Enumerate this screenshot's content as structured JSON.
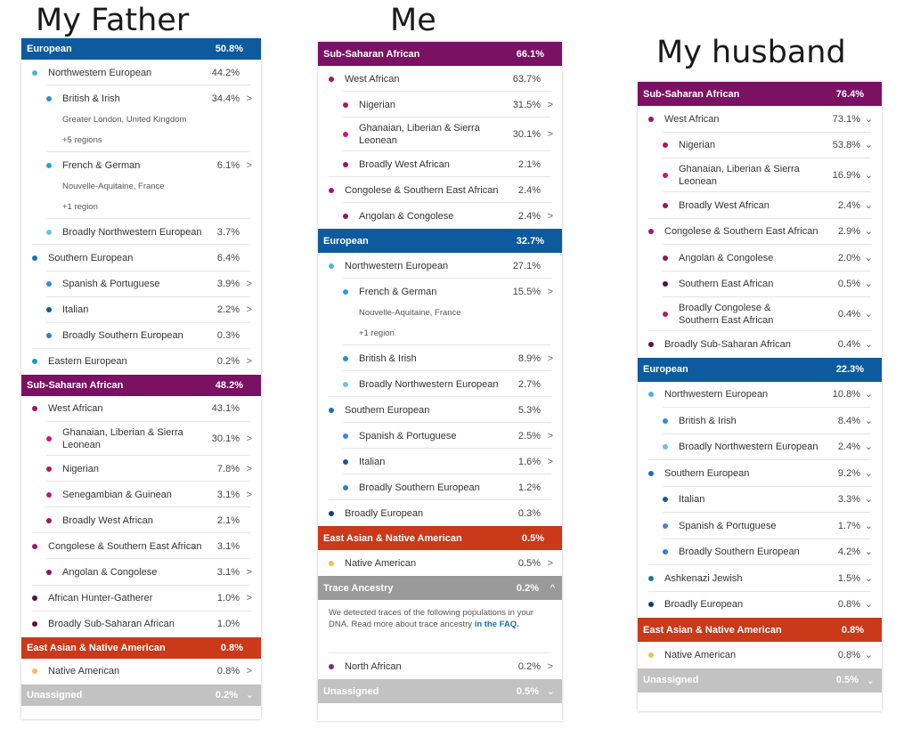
{
  "captions": {
    "father": "My Father",
    "me": "Me",
    "husband": "My husband"
  },
  "colors": {
    "european": "#0d5b9c",
    "subsaharan": "#7b1163",
    "eastasian": "#c9391a",
    "trace": "#9a9a9a",
    "unassigned": "#c2c2c2"
  },
  "father": {
    "rows": [
      {
        "label": "European",
        "pct": "50.8%",
        "type": "header",
        "color": "#0d5b9c"
      },
      {
        "label": "Northwestern European",
        "pct": "44.2%",
        "dot": "#4fb3d9"
      },
      {
        "label": "British & Irish",
        "pct": "34.4%",
        "dot": "#2f8fcf",
        "chevron": ">",
        "sub": [
          "Greater London, United Kingdom",
          "+5 regions"
        ]
      },
      {
        "label": "French & German",
        "pct": "6.1%",
        "dot": "#2aa0d8",
        "chevron": ">",
        "sub": [
          "Nouvelle-Aquitaine, France",
          "+1 region"
        ]
      },
      {
        "label": "Broadly Northwestern European",
        "pct": "3.7%",
        "dot": "#6cc3e8"
      },
      {
        "label": "Southern European",
        "pct": "6.4%",
        "dot": "#1b6fb3"
      },
      {
        "label": "Spanish & Portuguese",
        "pct": "3.9%",
        "dot": "#3b8ad6",
        "chevron": ">"
      },
      {
        "label": "Italian",
        "pct": "2.2%",
        "dot": "#175a9c",
        "chevron": ">"
      },
      {
        "label": "Broadly Southern European",
        "pct": "0.3%",
        "dot": "#2f7fd0"
      },
      {
        "label": "Eastern European",
        "pct": "0.2%",
        "dot": "#1a9bc6",
        "chevron": ">"
      },
      {
        "label": "Sub-Saharan African",
        "pct": "48.2%",
        "type": "header",
        "color": "#7b1163"
      },
      {
        "label": "West African",
        "pct": "43.1%",
        "dot": "#a11463"
      },
      {
        "label": "Ghanaian, Liberian & Sierra Leonean",
        "pct": "30.1%",
        "dot": "#d1166f",
        "chevron": ">",
        "two": true
      },
      {
        "label": "Nigerian",
        "pct": "7.8%",
        "dot": "#b51561",
        "chevron": ">"
      },
      {
        "label": "Senegambian & Guinean",
        "pct": "3.1%",
        "dot": "#c0197a",
        "chevron": ">"
      },
      {
        "label": "Broadly West African",
        "pct": "2.1%",
        "dot": "#9e1660"
      },
      {
        "label": "Congolese & Southern East African",
        "pct": "3.1%",
        "dot": "#a0186e"
      },
      {
        "label": "Angolan & Congolese",
        "pct": "3.1%",
        "dot": "#8e1565",
        "chevron": ">"
      },
      {
        "label": "African Hunter-Gatherer",
        "pct": "1.0%",
        "dot": "#5a0e45",
        "chevron": ">"
      },
      {
        "label": "Broadly Sub-Saharan African",
        "pct": "1.0%",
        "dot": "#5e1046"
      },
      {
        "label": "East Asian & Native American",
        "pct": "0.8%",
        "type": "header",
        "color": "#c9391a"
      },
      {
        "label": "Native American",
        "pct": "0.8%",
        "dot": "#f2c14a",
        "chevron": ">"
      },
      {
        "label": "Unassigned",
        "pct": "0.2%",
        "type": "header",
        "color": "#c2c2c2",
        "chevron": "⌄"
      }
    ]
  },
  "me": {
    "rows": [
      {
        "label": "Sub-Saharan African",
        "pct": "66.1%",
        "type": "header",
        "color": "#7b1163"
      },
      {
        "label": "West African",
        "pct": "63.7%",
        "dot": "#a11463"
      },
      {
        "label": "Nigerian",
        "pct": "31.5%",
        "dot": "#b51561",
        "chevron": ">"
      },
      {
        "label": "Ghanaian, Liberian & Sierra Leonean",
        "pct": "30.1%",
        "dot": "#d1166f",
        "chevron": ">",
        "two": true
      },
      {
        "label": "Broadly West African",
        "pct": "2.1%",
        "dot": "#9e1660"
      },
      {
        "label": "Congolese & Southern East African",
        "pct": "2.4%",
        "dot": "#a0186e"
      },
      {
        "label": "Angolan & Congolese",
        "pct": "2.4%",
        "dot": "#8e1565",
        "chevron": ">"
      },
      {
        "label": "European",
        "pct": "32.7%",
        "type": "header",
        "color": "#0d5b9c"
      },
      {
        "label": "Northwestern European",
        "pct": "27.1%",
        "dot": "#4fb3d9"
      },
      {
        "label": "French & German",
        "pct": "15.5%",
        "dot": "#2aa0d8",
        "chevron": ">",
        "sub": [
          "Nouvelle-Aquitaine, France",
          "+1 region"
        ]
      },
      {
        "label": "British & Irish",
        "pct": "8.9%",
        "dot": "#2f8fcf",
        "chevron": ">"
      },
      {
        "label": "Broadly Northwestern European",
        "pct": "2.7%",
        "dot": "#6cc3e8"
      },
      {
        "label": "Southern European",
        "pct": "5.3%",
        "dot": "#1b6fb3"
      },
      {
        "label": "Spanish & Portuguese",
        "pct": "2.5%",
        "dot": "#3b8ad6",
        "chevron": ">"
      },
      {
        "label": "Italian",
        "pct": "1.6%",
        "dot": "#175a9c",
        "chevron": ">"
      },
      {
        "label": "Broadly Southern European",
        "pct": "1.2%",
        "dot": "#2f7fd0"
      },
      {
        "label": "Broadly European",
        "pct": "0.3%",
        "dot": "#0e3f75"
      },
      {
        "label": "East Asian & Native American",
        "pct": "0.5%",
        "type": "header",
        "color": "#c9391a"
      },
      {
        "label": "Native American",
        "pct": "0.5%",
        "dot": "#f2c14a",
        "chevron": ">"
      },
      {
        "label": "Trace Ancestry",
        "pct": "0.2%",
        "type": "header",
        "color": "#9a9a9a",
        "chevron": "^"
      },
      {
        "type": "note",
        "text": "We detected traces of the following populations in your DNA. Read more about trace ancestry ",
        "link": "in the FAQ."
      },
      {
        "label": "North African",
        "pct": "0.2%",
        "dot": "#7a2a80",
        "chevron": ">"
      },
      {
        "label": "Unassigned",
        "pct": "0.5%",
        "type": "header",
        "color": "#c2c2c2",
        "chevron": "⌄"
      }
    ]
  },
  "husband": {
    "rows": [
      {
        "label": "Sub-Saharan African",
        "pct": "76.4%",
        "type": "header",
        "color": "#7b1163"
      },
      {
        "label": "West African",
        "pct": "73.1%",
        "dot": "#a11463",
        "chevron": "⌄"
      },
      {
        "label": "Nigerian",
        "pct": "53.8%",
        "dot": "#b51561",
        "chevron": "⌄"
      },
      {
        "label": "Ghanaian, Liberian & Sierra Leonean",
        "pct": "16.9%",
        "dot": "#d1166f",
        "chevron": "⌄",
        "two": true
      },
      {
        "label": "Broadly West African",
        "pct": "2.4%",
        "dot": "#9e1660",
        "chevron": "⌄"
      },
      {
        "label": "Congolese & Southern East African",
        "pct": "2.9%",
        "dot": "#a0186e",
        "chevron": "⌄"
      },
      {
        "label": "Angolan & Congolese",
        "pct": "2.0%",
        "dot": "#8e1565",
        "chevron": "⌄"
      },
      {
        "label": "Southern East African",
        "pct": "0.5%",
        "dot": "#5a0e45",
        "chevron": "⌄"
      },
      {
        "label": "Broadly Congolese & Southern East African",
        "pct": "0.4%",
        "dot": "#b01a7a",
        "chevron": "⌄",
        "two": true
      },
      {
        "label": "Broadly Sub-Saharan African",
        "pct": "0.4%",
        "dot": "#5e1046",
        "chevron": "⌄"
      },
      {
        "label": "European",
        "pct": "22.3%",
        "type": "header",
        "color": "#0d5b9c"
      },
      {
        "label": "Northwestern European",
        "pct": "10.8%",
        "dot": "#4fb3d9",
        "chevron": "⌄"
      },
      {
        "label": "British & Irish",
        "pct": "8.4%",
        "dot": "#2f8fcf",
        "chevron": "⌄"
      },
      {
        "label": "Broadly Northwestern European",
        "pct": "2.4%",
        "dot": "#6cc3e8",
        "chevron": "⌄"
      },
      {
        "label": "Southern European",
        "pct": "9.2%",
        "dot": "#1b6fb3",
        "chevron": "⌄"
      },
      {
        "label": "Italian",
        "pct": "3.3%",
        "dot": "#175a9c",
        "chevron": "⌄"
      },
      {
        "label": "Spanish & Portuguese",
        "pct": "1.7%",
        "dot": "#3b8ad6",
        "chevron": "⌄"
      },
      {
        "label": "Broadly Southern European",
        "pct": "4.2%",
        "dot": "#2f7fd0",
        "chevron": "⌄"
      },
      {
        "label": "Ashkenazi Jewish",
        "pct": "1.5%",
        "dot": "#14807e",
        "chevron": "⌄"
      },
      {
        "label": "Broadly European",
        "pct": "0.8%",
        "dot": "#0e3f75",
        "chevron": "⌄"
      },
      {
        "label": "East Asian & Native American",
        "pct": "0.8%",
        "type": "header",
        "color": "#c9391a"
      },
      {
        "label": "Native American",
        "pct": "0.8%",
        "dot": "#f2c14a",
        "chevron": "⌄"
      },
      {
        "label": "Unassigned",
        "pct": "0.5%",
        "type": "header",
        "color": "#c2c2c2",
        "chevron": "⌄"
      }
    ]
  }
}
